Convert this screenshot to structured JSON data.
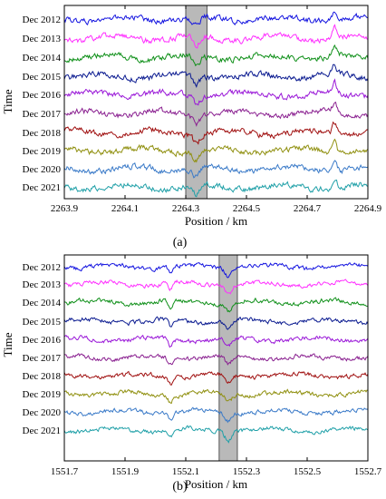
{
  "chart_data": [
    {
      "panel": "(a)",
      "type": "line",
      "xlabel": "Position / km",
      "ylabel": "Time",
      "xlim": [
        2263.9,
        2264.9
      ],
      "xticks": [
        "2263.9",
        "2264.1",
        "2264.3",
        "2264.5",
        "2264.7",
        "2264.9"
      ],
      "series_labels": [
        "Dec 2012",
        "Dec 2013",
        "Dec 2014",
        "Dec 2015",
        "Dec 2016",
        "Dec 2017",
        "Dec 2018",
        "Dec 2019",
        "Dec 2020",
        "Dec 2021"
      ],
      "highlight_x": [
        2264.3,
        2264.37
      ],
      "colors": [
        "#1515e0",
        "#ff30ff",
        "#10901a",
        "#0a1a90",
        "#9a18d8",
        "#8a2090",
        "#a01010",
        "#909010",
        "#3a7ac8",
        "#20a0a8"
      ]
    },
    {
      "panel": "(b)",
      "type": "line",
      "xlabel": "Position / km",
      "ylabel": "Time",
      "xlim": [
        1551.7,
        1552.7
      ],
      "xticks": [
        "1551.7",
        "1551.9",
        "1552.1",
        "1552.3",
        "1552.5",
        "1552.7"
      ],
      "series_labels": [
        "Dec 2012",
        "Dec 2013",
        "Dec 2014",
        "Dec 2015",
        "Dec 2016",
        "Dec 2017",
        "Dec 2018",
        "Dec 2019",
        "Dec 2020",
        "Dec 2021"
      ],
      "highlight_x": [
        1552.21,
        1552.27
      ],
      "colors": [
        "#1515e0",
        "#ff30ff",
        "#10901a",
        "#0a1a90",
        "#9a18d8",
        "#8a2090",
        "#a01010",
        "#909010",
        "#3a7ac8",
        "#20a0a8"
      ]
    }
  ]
}
